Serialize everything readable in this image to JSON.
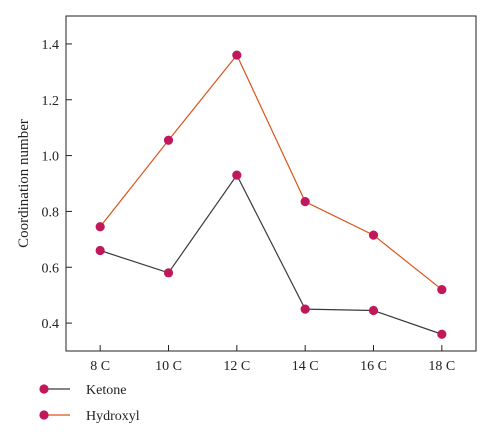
{
  "chart_data": {
    "type": "line",
    "categories": [
      "8 C",
      "10 C",
      "12 C",
      "14 C",
      "16 C",
      "18 C"
    ],
    "series": [
      {
        "name": "Ketone",
        "values": [
          0.66,
          0.58,
          0.93,
          0.45,
          0.445,
          0.36
        ],
        "line_color": "#3a3a3a",
        "marker_color": "#c0185a"
      },
      {
        "name": "Hydroxyl",
        "values": [
          0.745,
          1.055,
          1.36,
          0.835,
          0.715,
          0.52
        ],
        "line_color": "#d9541e",
        "marker_color": "#c0185a"
      }
    ],
    "title": "",
    "xlabel": "",
    "ylabel": "Coordination number",
    "ylim": [
      0.3,
      1.5
    ],
    "yticks": [
      "0.4",
      "0.6",
      "0.8",
      "1.0",
      "1.2",
      "1.4"
    ],
    "grid": false,
    "legend_position": "bottom-left"
  }
}
